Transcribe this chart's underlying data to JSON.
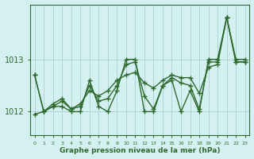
{
  "xlabel": "Graphe pression niveau de la mer (hPa)",
  "x": [
    0,
    1,
    2,
    3,
    4,
    5,
    6,
    7,
    8,
    9,
    10,
    11,
    12,
    13,
    14,
    15,
    16,
    17,
    18,
    19,
    20,
    21,
    22,
    23
  ],
  "line1": [
    1012.7,
    1012.0,
    1012.1,
    1012.1,
    1012.0,
    1012.0,
    1012.6,
    1012.1,
    1012.0,
    1012.4,
    1013.0,
    1013.0,
    1012.0,
    1012.0,
    1012.5,
    1012.6,
    1012.0,
    1012.4,
    1012.0,
    1013.0,
    1013.0,
    1013.8,
    1013.0,
    1013.0
  ],
  "line2": [
    1012.7,
    1012.0,
    1012.15,
    1012.25,
    1012.05,
    1012.1,
    1012.5,
    1012.2,
    1012.25,
    1012.5,
    1012.9,
    1012.95,
    1012.3,
    1012.05,
    1012.5,
    1012.65,
    1012.55,
    1012.5,
    1012.05,
    1012.95,
    1012.95,
    1013.8,
    1012.95,
    1012.95
  ],
  "line3": [
    1011.95,
    1012.0,
    1012.1,
    1012.2,
    1012.05,
    1012.15,
    1012.4,
    1012.3,
    1012.4,
    1012.6,
    1012.7,
    1012.75,
    1012.55,
    1012.45,
    1012.6,
    1012.7,
    1012.65,
    1012.65,
    1012.35,
    1012.85,
    1012.9,
    1013.8,
    1012.95,
    1012.95
  ],
  "line_color": "#2d6a2d",
  "bg_color": "#d4f0f0",
  "grid_color": "#aed4d4",
  "yticks": [
    1012,
    1013
  ],
  "ylim": [
    1011.55,
    1014.05
  ],
  "xlim": [
    -0.5,
    23.5
  ],
  "marker": "+",
  "markersize": 4,
  "linewidth": 1.0,
  "figwidth": 3.2,
  "figheight": 2.0,
  "dpi": 100
}
